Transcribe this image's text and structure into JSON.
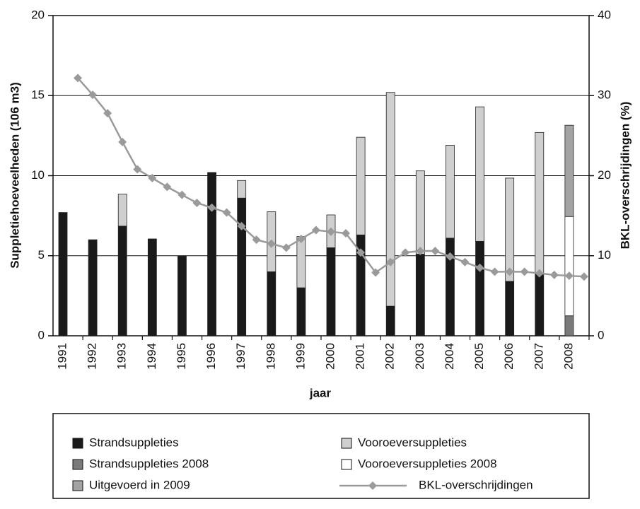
{
  "chart_data": {
    "type": "bar",
    "x_label": "jaar",
    "y_label": "Suppletiehoeveelheden (106 m3)",
    "y2_label": "BKL-overschrijdingen (%)",
    "categories": [
      "1991",
      "1992",
      "1993",
      "1994",
      "1995",
      "1996",
      "1997",
      "1998",
      "1999",
      "2000",
      "2001",
      "2002",
      "2003",
      "2004",
      "2005",
      "2006",
      "2007",
      "2008"
    ],
    "ylim": [
      0,
      20
    ],
    "yticks": [
      0,
      5,
      10,
      15,
      20
    ],
    "y2lim": [
      0,
      40
    ],
    "y2ticks": [
      0,
      10,
      20,
      30,
      40
    ],
    "grid": true,
    "series": [
      {
        "name": "Strandsuppleties",
        "color": "#1a1a1a",
        "values": [
          7.7,
          6.0,
          6.85,
          6.05,
          5.0,
          10.2,
          8.6,
          4.0,
          3.0,
          5.5,
          6.3,
          1.85,
          5.1,
          6.1,
          5.9,
          3.4,
          3.9,
          null
        ]
      },
      {
        "name": "Vooroeversuppleties",
        "color": "#cfcfcf",
        "values": [
          null,
          null,
          2.0,
          null,
          null,
          null,
          1.1,
          3.75,
          3.2,
          2.05,
          6.1,
          13.35,
          5.2,
          5.8,
          8.4,
          6.45,
          8.8,
          null
        ]
      },
      {
        "name": "Strandsuppleties 2008",
        "color": "#7a7a7a",
        "values": [
          null,
          null,
          null,
          null,
          null,
          null,
          null,
          null,
          null,
          null,
          null,
          null,
          null,
          null,
          null,
          null,
          null,
          1.25
        ]
      },
      {
        "name": "Vooroeversuppleties 2008",
        "color": "#ffffff",
        "values": [
          null,
          null,
          null,
          null,
          null,
          null,
          null,
          null,
          null,
          null,
          null,
          null,
          null,
          null,
          null,
          null,
          null,
          6.2
        ]
      },
      {
        "name": "Uitgevoerd in 2009",
        "color": "#a3a3a3",
        "values": [
          null,
          null,
          null,
          null,
          null,
          null,
          null,
          null,
          null,
          null,
          null,
          null,
          null,
          null,
          null,
          null,
          null,
          5.7
        ]
      },
      {
        "name": "BKL-overschrijdingen",
        "color": "#9a9a9a",
        "type": "line",
        "axis": "y2",
        "x": [
          1991,
          1991.5,
          1992,
          1992.5,
          1993,
          1993.5,
          1994,
          1994.5,
          1995,
          1995.5,
          1996,
          1996.5,
          1997,
          1997.5,
          1998,
          1998.5,
          1999,
          1999.5,
          2000,
          2000.5,
          2001,
          2001.5,
          2002,
          2002.5,
          2003,
          2003.5,
          2004,
          2004.5,
          2005,
          2005.5,
          2006,
          2006.5,
          2007,
          2007.5,
          2008
        ],
        "values": [
          32.2,
          30.1,
          27.8,
          24.2,
          20.8,
          19.7,
          18.6,
          17.6,
          16.6,
          16.0,
          15.4,
          13.7,
          12.0,
          11.5,
          11.0,
          12.1,
          13.2,
          13.0,
          12.8,
          10.4,
          7.9,
          9.2,
          10.4,
          10.6,
          10.6,
          9.9,
          9.2,
          8.5,
          8.0,
          8.0,
          8.0,
          7.8,
          7.6,
          7.5,
          7.4
        ]
      }
    ]
  }
}
